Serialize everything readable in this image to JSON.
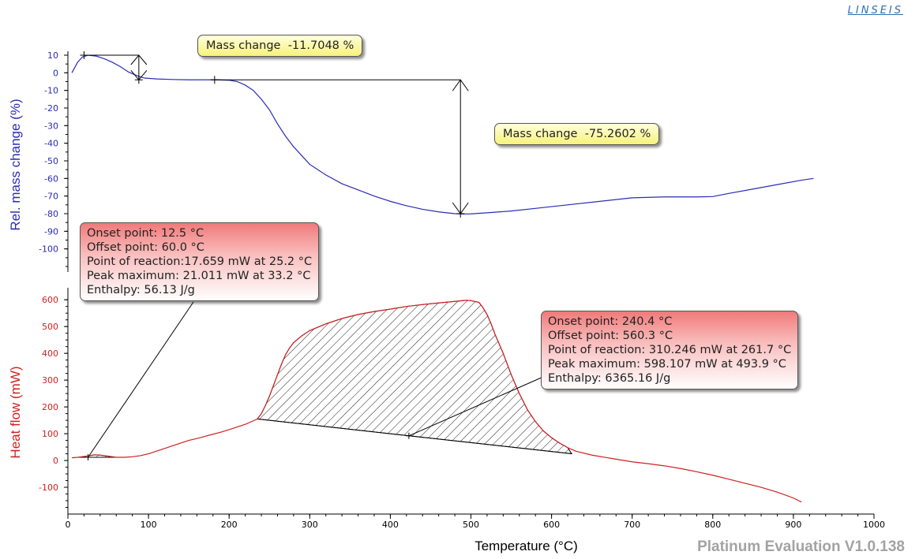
{
  "brand": "LINSEIS",
  "footer": "Platinum Evaluation V1.0.138",
  "chart_data": {
    "type": "line",
    "xlabel": "Temperature (°C)",
    "xlim": [
      0,
      1000
    ],
    "x_ticks": [
      0,
      100,
      200,
      300,
      400,
      500,
      600,
      700,
      800,
      900,
      1000
    ],
    "panels": [
      {
        "name": "tg",
        "ylabel": "Rel. mass change (%)",
        "color": "#2b2bb5",
        "ylim": [
          -110,
          10
        ],
        "y_ticks": [
          10,
          0,
          -10,
          -20,
          -30,
          -40,
          -50,
          -60,
          -70,
          -80,
          -90,
          -100
        ],
        "series": [
          {
            "x": [
              5,
              12,
              18,
              25,
              35,
              45,
              55,
              65,
              75,
              85,
              95,
              110,
              130,
              150,
              170,
              185,
              200,
              210,
              220,
              230,
              240,
              250,
              260,
              270,
              280,
              290,
              300,
              320,
              340,
              360,
              380,
              400,
              420,
              440,
              460,
              480,
              490,
              500,
              520,
              550,
              580,
              620,
              660,
              700,
              740,
              780,
              800,
              820,
              850,
              880,
              910,
              925
            ],
            "y": [
              0,
              6,
              9,
              10,
              9.5,
              8,
              6,
              3.5,
              0.5,
              -1.5,
              -3,
              -3.5,
              -3.8,
              -4,
              -4,
              -4,
              -4.2,
              -5,
              -7,
              -10,
              -15,
              -21,
              -29,
              -36,
              -42,
              -47,
              -52,
              -58,
              -63,
              -66.5,
              -70,
              -73,
              -75.5,
              -77.5,
              -79,
              -80,
              -80.2,
              -80.1,
              -79.5,
              -78.5,
              -77,
              -75,
              -73,
              -71,
              -70.5,
              -70.5,
              -70.3,
              -68.5,
              -66,
              -63.5,
              -61,
              -60
            ]
          }
        ],
        "mass_changes": [
          {
            "label": "Mass change",
            "value": "-11.7048 %",
            "x": 88,
            "y_top": 10,
            "y_bottom": -4,
            "line_start": 20,
            "lower_start": 88
          },
          {
            "label": "Mass change",
            "value": "-75.2602 %",
            "x": 487,
            "y_top": -4,
            "y_bottom": -80,
            "line_start": 182
          }
        ]
      },
      {
        "name": "dsc",
        "ylabel": "Heat flow (mW)",
        "color": "#d02020",
        "ylim": [
          -200,
          630
        ],
        "y_ticks": [
          600,
          500,
          400,
          300,
          200,
          100,
          0,
          -100
        ],
        "series": [
          {
            "x": [
              5,
              12.5,
              20,
              25,
              33,
              40,
              50,
              60,
              70,
              80,
              90,
              100,
              110,
              120,
              130,
              140,
              150,
              160,
              170,
              180,
              190,
              200,
              210,
              220,
              230,
              235,
              240,
              245,
              250,
              255,
              260,
              265,
              270,
              275,
              280,
              290,
              300,
              320,
              340,
              360,
              380,
              400,
              420,
              440,
              460,
              480,
              494,
              500,
              510,
              515,
              520,
              525,
              530,
              540,
              550,
              560,
              570,
              580,
              590,
              600,
              610,
              620,
              630,
              650,
              680,
              700,
              720,
              740,
              760,
              780,
              800,
              820,
              840,
              860,
              880,
              900,
              910
            ],
            "y": [
              10,
              12,
              15,
              17,
              21,
              20,
              16,
              12,
              12,
              14,
              18,
              25,
              35,
              45,
              55,
              65,
              75,
              82,
              90,
              98,
              106,
              115,
              125,
              135,
              148,
              155,
              175,
              205,
              240,
              280,
              320,
              360,
              395,
              420,
              440,
              465,
              485,
              510,
              530,
              545,
              556,
              565,
              575,
              582,
              588,
              594,
              598,
              597,
              590,
              570,
              545,
              510,
              470,
              400,
              320,
              250,
              190,
              145,
              110,
              85,
              65,
              48,
              35,
              20,
              5,
              -5,
              -12,
              -20,
              -30,
              -42,
              -55,
              -70,
              -85,
              -100,
              -118,
              -140,
              -155
            ]
          }
        ],
        "peaks": [
          {
            "onset": "Onset point: 12.5 °C",
            "offset": "Offset point: 60.0 °C",
            "reaction": "Point of reaction:17.659 mW at 25.2 °C",
            "peak": "Peak maximum: 21.011 mW at 33.2 °C",
            "enthalpy": "Enthalpy: 56.13 J/g",
            "x_from": 12.5,
            "x_to": 60.0,
            "baseline": [
              [
                12.5,
                12
              ],
              [
                60.0,
                12
              ]
            ],
            "marker": [
              25,
              12
            ]
          },
          {
            "onset": "Onset point: 240.4 °C",
            "offset": "Offset point: 560.3 °C",
            "reaction": "Point of reaction: 310.246 mW at 261.7 °C",
            "peak": "Peak maximum: 598.107 mW at 493.9 °C",
            "enthalpy": "Enthalpy: 6365.16 J/g",
            "x_from": 235,
            "x_to": 625,
            "baseline": [
              [
                235,
                155
              ],
              [
                625,
                25
              ]
            ],
            "marker": [
              423,
              92
            ]
          }
        ]
      }
    ]
  }
}
